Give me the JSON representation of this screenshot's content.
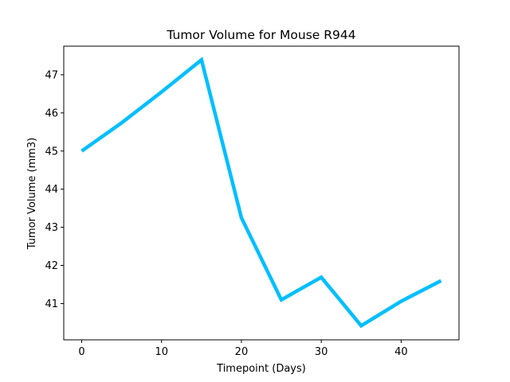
{
  "chart_data": {
    "type": "line",
    "title": "Tumor Volume for Mouse R944",
    "xlabel": "Timepoint (Days)",
    "ylabel": "Tumor Volume (mm3)",
    "xlim": [
      -2.25,
      47.25
    ],
    "ylim": [
      40.05,
      47.75
    ],
    "x_ticks": [
      0,
      10,
      20,
      30,
      40
    ],
    "y_ticks": [
      41,
      42,
      43,
      44,
      45,
      46,
      47
    ],
    "grid": false,
    "legend": "none",
    "series": [
      {
        "color": "#00bfff",
        "x": [
          0,
          5,
          10,
          15,
          20,
          25,
          30,
          35,
          40,
          45
        ],
        "y": [
          45.0,
          45.74,
          46.55,
          47.39,
          43.25,
          41.1,
          41.69,
          40.42,
          41.06,
          41.6
        ]
      }
    ]
  }
}
